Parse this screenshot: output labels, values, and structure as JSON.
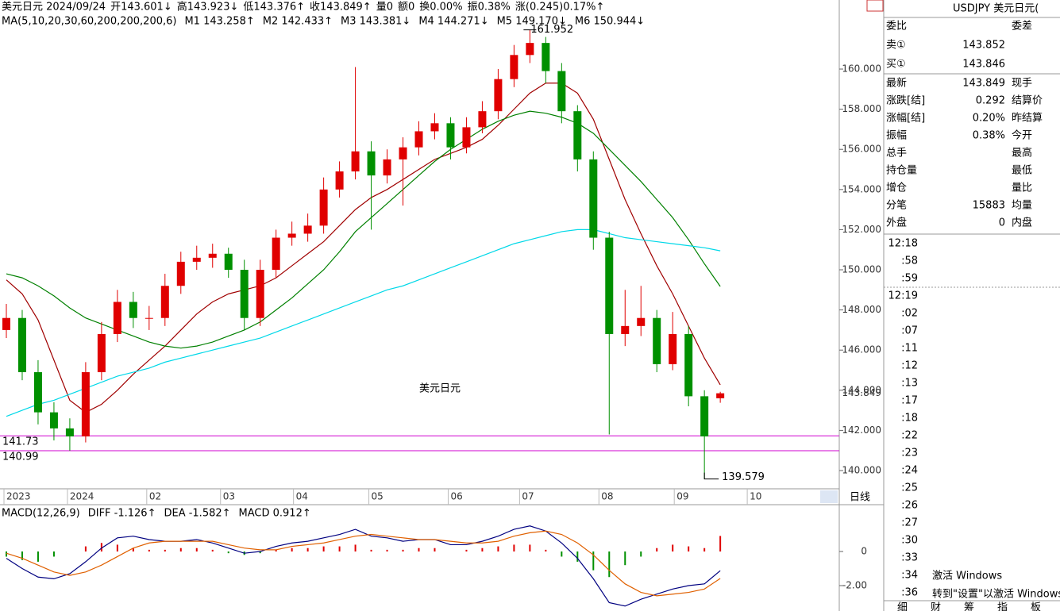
{
  "header": [
    {
      "text": "美元日元 2024/09/24",
      "color": "#000"
    },
    {
      "text": "开143.601↓",
      "color": "#008000"
    },
    {
      "text": "高143.923↓",
      "color": "#d00000"
    },
    {
      "text": "低143.376↑",
      "color": "#008000"
    },
    {
      "text": "收143.849↑",
      "color": "#d00000"
    },
    {
      "text": "量0",
      "color": "#000"
    },
    {
      "text": "额0",
      "color": "#000"
    },
    {
      "text": "换0.00%",
      "color": "#000"
    },
    {
      "text": "振0.38%",
      "color": "#000"
    },
    {
      "text": "涨(0.245)0.17%↑",
      "color": "#d00000"
    }
  ],
  "chart_data": [
    {
      "type": "candlestick",
      "title": "美元日元",
      "ma_label": "MA(5,10,20,30,60,200,200,200,6)",
      "ma_legend": [
        {
          "text": "M1 143.258↑",
          "color": "#000080"
        },
        {
          "text": "M2 142.433↑",
          "color": "#e06000"
        },
        {
          "text": "M3 143.381↓",
          "color": "#808080"
        },
        {
          "text": "M4 144.271↓",
          "color": "#a00000"
        },
        {
          "text": "M5 149.170↓",
          "color": "#008000"
        },
        {
          "text": "M6 150.944↓",
          "color": "#00d8e8"
        }
      ],
      "up_color": "#e00000",
      "down_color": "#009000",
      "open": [
        147.0,
        147.6,
        144.9,
        142.9,
        142.1,
        141.7,
        144.9,
        146.8,
        148.4,
        147.6,
        147.6,
        149.2,
        150.4,
        150.6,
        150.8,
        150.0,
        147.6,
        150.0,
        151.6,
        151.8,
        152.2,
        154.0,
        154.9,
        155.9,
        154.7,
        155.5,
        156.1,
        156.9,
        157.3,
        156.1,
        157.1,
        157.9,
        159.5,
        160.7,
        161.3,
        159.9,
        157.9,
        155.5,
        151.6,
        146.8,
        147.2,
        147.6,
        145.3,
        146.8,
        143.7,
        143.601
      ],
      "high": [
        148.3,
        148.0,
        145.5,
        143.4,
        142.6,
        145.4,
        147.4,
        149.0,
        148.9,
        148.2,
        149.8,
        150.9,
        151.2,
        151.3,
        151.1,
        150.5,
        150.5,
        152.0,
        152.4,
        152.8,
        154.6,
        155.4,
        160.1,
        156.4,
        156.0,
        156.6,
        157.4,
        157.8,
        157.6,
        157.6,
        158.4,
        160.0,
        161.2,
        161.952,
        161.6,
        160.3,
        158.2,
        155.9,
        151.9,
        149.0,
        149.2,
        148.0,
        147.9,
        147.2,
        144.0,
        143.923
      ],
      "low": [
        146.6,
        144.5,
        142.3,
        141.5,
        140.99,
        141.4,
        144.5,
        146.4,
        147.1,
        147.0,
        147.2,
        148.8,
        150.0,
        150.1,
        149.6,
        147.0,
        147.2,
        149.6,
        151.2,
        151.4,
        151.8,
        153.6,
        154.5,
        152.0,
        154.3,
        153.2,
        155.7,
        156.5,
        155.5,
        155.8,
        156.8,
        157.5,
        159.1,
        160.3,
        159.3,
        157.3,
        154.9,
        151.0,
        141.8,
        146.2,
        146.7,
        144.9,
        145.0,
        143.2,
        139.579,
        143.376
      ],
      "close": [
        147.6,
        144.9,
        142.9,
        142.1,
        141.7,
        144.9,
        146.8,
        148.4,
        147.6,
        147.6,
        149.2,
        150.4,
        150.6,
        150.8,
        150.0,
        147.6,
        150.0,
        151.6,
        151.8,
        152.2,
        154.0,
        154.9,
        155.9,
        154.7,
        155.5,
        156.1,
        156.9,
        157.3,
        156.1,
        157.1,
        157.9,
        159.5,
        160.7,
        161.3,
        159.9,
        157.9,
        155.5,
        151.6,
        146.8,
        147.2,
        147.6,
        145.3,
        146.8,
        143.7,
        141.7,
        143.849
      ],
      "series": [
        {
          "name": "M4",
          "color": "#a00000",
          "values": [
            149.5,
            148.8,
            147.5,
            145.5,
            143.5,
            142.9,
            143.3,
            144.0,
            144.8,
            145.5,
            146.2,
            147.0,
            147.8,
            148.4,
            148.8,
            149.0,
            149.2,
            149.6,
            150.2,
            150.8,
            151.4,
            152.2,
            153.0,
            153.6,
            154.0,
            154.5,
            155.0,
            155.5,
            155.8,
            156.1,
            156.5,
            157.2,
            158.0,
            158.8,
            159.3,
            159.3,
            158.8,
            157.5,
            155.5,
            153.5,
            151.8,
            150.2,
            148.8,
            147.2,
            145.6,
            144.271
          ]
        },
        {
          "name": "M5",
          "color": "#008000",
          "values": [
            149.8,
            149.6,
            149.2,
            148.7,
            148.1,
            147.6,
            147.3,
            147.0,
            146.7,
            146.4,
            146.2,
            146.1,
            146.2,
            146.4,
            146.7,
            147.0,
            147.4,
            148.0,
            148.6,
            149.3,
            150.0,
            150.9,
            151.9,
            152.6,
            153.3,
            154.0,
            154.7,
            155.4,
            156.0,
            156.5,
            157.0,
            157.4,
            157.7,
            157.9,
            157.8,
            157.6,
            157.3,
            156.8,
            156.0,
            155.2,
            154.4,
            153.5,
            152.6,
            151.5,
            150.3,
            149.17
          ]
        },
        {
          "name": "M6",
          "color": "#00d8e8",
          "values": [
            142.7,
            143.0,
            143.3,
            143.5,
            143.8,
            144.1,
            144.4,
            144.7,
            144.9,
            145.1,
            145.4,
            145.6,
            145.8,
            146.0,
            146.2,
            146.4,
            146.6,
            146.9,
            147.2,
            147.5,
            147.8,
            148.1,
            148.4,
            148.7,
            149.0,
            149.2,
            149.5,
            149.8,
            150.1,
            150.4,
            150.7,
            151.0,
            151.3,
            151.5,
            151.7,
            151.9,
            152.0,
            152.0,
            151.8,
            151.6,
            151.5,
            151.4,
            151.3,
            151.2,
            151.1,
            150.944
          ]
        }
      ],
      "hlines": [
        {
          "value": 141.73,
          "label": "141.73"
        },
        {
          "value": 140.99,
          "label": "140.99"
        }
      ],
      "high_label": {
        "value": 161.952,
        "label": "161.952"
      },
      "low_label": {
        "value": 139.579,
        "label": "139.579"
      },
      "last_label": {
        "value": 143.849,
        "label": "143.849"
      },
      "ylim": [
        139.13,
        163.44
      ],
      "yticks": [
        {
          "value": 140,
          "label": "140.000"
        },
        {
          "value": 142,
          "label": "142.000"
        },
        {
          "value": 144,
          "label": "144.000"
        },
        {
          "value": 146,
          "label": "146.000"
        },
        {
          "value": 148,
          "label": "148.000"
        },
        {
          "value": 150,
          "label": "150.000"
        },
        {
          "value": 152,
          "label": "152.000"
        },
        {
          "value": 154,
          "label": "154.000"
        },
        {
          "value": 156,
          "label": "156.000"
        },
        {
          "value": 158,
          "label": "158.000"
        },
        {
          "value": 160,
          "label": "160.000"
        }
      ],
      "xlim": [
        -0.4,
        52.5
      ],
      "xticks": [
        {
          "value": -0.15,
          "label": "2023"
        },
        {
          "value": 3.85,
          "label": "2024"
        },
        {
          "value": 8.85,
          "label": "02"
        },
        {
          "value": 13.5,
          "label": "03"
        },
        {
          "value": 18.1,
          "label": "04"
        },
        {
          "value": 22.85,
          "label": "05"
        },
        {
          "value": 27.85,
          "label": "06"
        },
        {
          "value": 32.35,
          "label": "07"
        },
        {
          "value": 37.35,
          "label": "08"
        },
        {
          "value": 42.1,
          "label": "09"
        },
        {
          "value": 46.7,
          "label": "10"
        }
      ],
      "period": "日线"
    },
    {
      "type": "macd",
      "title": "MACD(12,26,9)",
      "series": [
        {
          "name": "DIFF -1.126↑",
          "color": "#000080",
          "values": [
            -0.4,
            -1.0,
            -1.5,
            -1.6,
            -1.3,
            -0.6,
            0.2,
            0.8,
            0.9,
            0.7,
            0.6,
            0.6,
            0.7,
            0.5,
            0.2,
            -0.1,
            0.0,
            0.3,
            0.5,
            0.6,
            0.8,
            1.0,
            1.3,
            0.9,
            0.8,
            0.6,
            0.7,
            0.7,
            0.4,
            0.4,
            0.6,
            0.9,
            1.3,
            1.5,
            1.2,
            0.5,
            -0.4,
            -1.6,
            -3.0,
            -3.2,
            -2.8,
            -2.5,
            -2.2,
            -2.0,
            -1.9,
            -1.126
          ]
        },
        {
          "name": "DEA -1.582↑",
          "color": "#e06000",
          "values": [
            -0.1,
            -0.4,
            -0.8,
            -1.2,
            -1.4,
            -1.2,
            -0.8,
            -0.3,
            0.2,
            0.5,
            0.6,
            0.6,
            0.6,
            0.6,
            0.4,
            0.2,
            0.1,
            0.1,
            0.3,
            0.4,
            0.5,
            0.7,
            0.9,
            1.0,
            0.9,
            0.8,
            0.7,
            0.7,
            0.6,
            0.5,
            0.5,
            0.6,
            0.9,
            1.1,
            1.2,
            1.0,
            0.5,
            -0.2,
            -1.1,
            -1.9,
            -2.4,
            -2.6,
            -2.5,
            -2.4,
            -2.2,
            -1.582
          ]
        }
      ],
      "hist_name": "MACD 0.912↑",
      "hist": [
        -0.3,
        -0.5,
        -0.6,
        -0.3,
        0.0,
        0.3,
        0.5,
        0.4,
        0.2,
        0.1,
        0.1,
        0.2,
        0.2,
        0.1,
        -0.1,
        -0.2,
        -0.1,
        0.1,
        0.2,
        0.2,
        0.3,
        0.3,
        0.4,
        0.1,
        0.1,
        0.1,
        0.2,
        0.2,
        0.0,
        0.1,
        0.2,
        0.3,
        0.4,
        0.4,
        0.1,
        -0.3,
        -0.6,
        -1.1,
        -1.5,
        -0.8,
        -0.3,
        0.2,
        0.4,
        0.3,
        0.2,
        0.912
      ],
      "ylim": [
        -3.49,
        2.7
      ],
      "yticks": [
        0,
        {
          "value": -2,
          "label": "-2.00"
        }
      ]
    }
  ],
  "quote": {
    "title": "USDJPY 美元日元(",
    "bid_ask": [
      [
        "委比",
        "",
        "委差"
      ],
      [
        "卖①",
        "143.852",
        ""
      ],
      [
        "买①",
        "143.846",
        ""
      ]
    ],
    "rows": [
      [
        "最新",
        "143.849",
        "现手"
      ],
      [
        "涨跌[结]",
        "0.292",
        "结算价"
      ],
      [
        "涨幅[结]",
        "0.20%",
        "昨结算"
      ],
      [
        "振幅",
        "0.38%",
        "今开"
      ],
      [
        "总手",
        "",
        "最高"
      ],
      [
        "持仓量",
        "",
        "最低"
      ],
      [
        "增仓",
        "",
        "量比"
      ],
      [
        "分笔",
        "15883",
        "均量"
      ],
      [
        "外盘",
        "0",
        "内盘"
      ]
    ],
    "times": [
      "12:18",
      ":58",
      ":59",
      "12:19",
      ":02",
      ":07",
      ":11",
      ":12",
      ":13",
      ":17",
      ":18",
      ":22",
      ":23",
      ":24",
      ":25",
      ":26",
      ":27",
      ":30",
      ":33",
      ":34",
      ":36"
    ],
    "tabs": [
      "细",
      "财",
      "筹",
      "指",
      "板"
    ]
  },
  "watermark": {
    "line1": "激活 Windows",
    "line2": "转到\"设置\"以激活 Windows。"
  }
}
